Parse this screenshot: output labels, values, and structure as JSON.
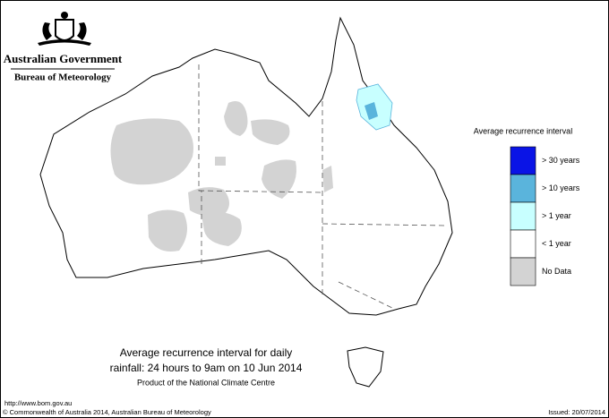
{
  "header": {
    "title": "Australian Government",
    "subtitle": "Bureau of Meteorology"
  },
  "legend": {
    "title": "Average recurrence interval",
    "items": [
      {
        "label": "> 30 years",
        "color": "#0a14e6"
      },
      {
        "label": "> 10 years",
        "color": "#5ab4dc"
      },
      {
        "label": "> 1 year",
        "color": "#c8ffff"
      },
      {
        "label": "< 1 year",
        "color": "#ffffff"
      },
      {
        "label": "No Data",
        "color": "#d3d3d3"
      }
    ]
  },
  "caption": {
    "lines": [
      "Average recurrence interval for daily",
      "rainfall: 24 hours to 9am on 10 Jun 2014"
    ],
    "credit": "Product of the National Climate Centre"
  },
  "footer": {
    "url": "http://www.bom.gov.au",
    "copyright": "© Commonwealth of Australia 2014, Australian Bureau of Meteorology",
    "issued": "Issued: 20/07/2014"
  }
}
